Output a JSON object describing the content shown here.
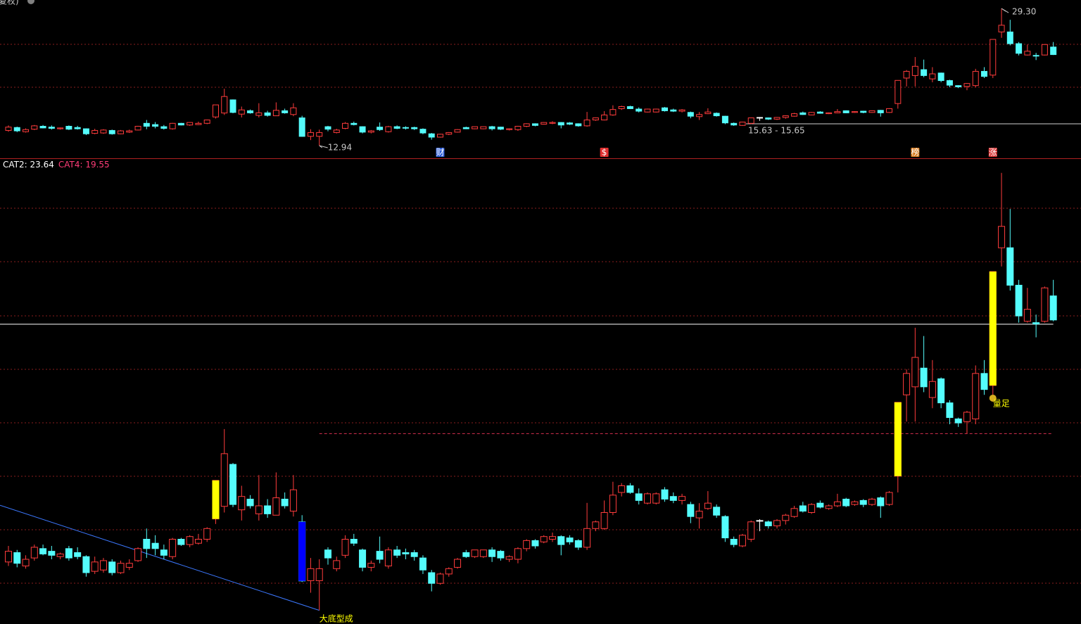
{
  "chart_data": {
    "type": "candlestick",
    "header": "复权)",
    "open": [
      14.75,
      15.1,
      14.6,
      14.9,
      15.25,
      15.15,
      14.95,
      15.25,
      15.1,
      14.95,
      14.4,
      14.45,
      14.75,
      14.35,
      14.55,
      14.8,
      15.6,
      15.45,
      15.2,
      14.95,
      15.6,
      15.4,
      15.45,
      15.6,
      16.36,
      16.83,
      18.4,
      16.7,
      17.1,
      16.55,
      16.85,
      16.5,
      17.1,
      16.65,
      16.25,
      14.05,
      14.05,
      15.2,
      14.5,
      15.0,
      15.6,
      15.2,
      14.55,
      15.15,
      14.6,
      15.2,
      15.1,
      15.1,
      14.9,
      14.35,
      13.95,
      14.3,
      14.55,
      15.1,
      14.95,
      14.95,
      15.2,
      15.15,
      14.85,
      14.85,
      15.25,
      15.55,
      15.5,
      15.6,
      15.7,
      15.65,
      15.55,
      15.3,
      16.0,
      16.0,
      16.6,
      17.35,
      17.6,
      17.3,
      16.95,
      16.95,
      17.45,
      17.2,
      17.05,
      16.9,
      16.4,
      16.75,
      16.8,
      16.45,
      15.6,
      15.35,
      15.6,
      16.3,
      16.25,
      16.1,
      16.3,
      16.45,
      16.85,
      16.6,
      16.95,
      16.75,
      16.85,
      17.1,
      16.9,
      17.05,
      16.9,
      17.15,
      16.9,
      17.96,
      21.0,
      21.3,
      22.0,
      20.9,
      21.6,
      20.7,
      20.1,
      20.0,
      20.1,
      21.8,
      21.35,
      26.5,
      26.5,
      25.1,
      23.75,
      23.7,
      23.75,
      24.7
    ],
    "high": [
      15.35,
      15.2,
      15.0,
      15.4,
      15.4,
      15.35,
      15.1,
      15.35,
      15.3,
      15.0,
      14.95,
      14.9,
      14.85,
      14.8,
      14.85,
      15.3,
      16.0,
      15.75,
      15.4,
      15.65,
      15.65,
      15.75,
      15.8,
      16.05,
      17.8,
      19.72,
      18.45,
      17.6,
      17.25,
      18.0,
      17.1,
      18.1,
      17.35,
      18.0,
      16.5,
      14.9,
      14.85,
      15.3,
      14.95,
      15.75,
      15.8,
      15.25,
      14.8,
      15.7,
      15.3,
      15.35,
      15.25,
      15.2,
      15.0,
      14.45,
      14.35,
      14.55,
      14.9,
      15.2,
      15.2,
      15.2,
      15.3,
      15.2,
      15.0,
      15.3,
      15.6,
      15.6,
      15.75,
      15.85,
      15.75,
      15.75,
      15.6,
      16.96,
      16.3,
      17.05,
      17.75,
      17.7,
      17.7,
      17.5,
      17.35,
      17.35,
      17.55,
      17.35,
      17.3,
      17.0,
      16.95,
      17.4,
      16.9,
      16.5,
      15.7,
      15.8,
      16.3,
      16.35,
      16.3,
      16.35,
      16.55,
      16.85,
      17.0,
      16.95,
      17.05,
      16.9,
      17.3,
      17.15,
      17.05,
      17.1,
      17.15,
      17.2,
      17.4,
      20.72,
      21.95,
      23.51,
      23.2,
      22.3,
      21.65,
      20.8,
      20.15,
      20.4,
      22.1,
      22.3,
      25.61,
      29.3,
      27.95,
      25.3,
      25.0,
      24.0,
      25.05,
      25.3
    ],
    "low": [
      14.6,
      14.55,
      14.5,
      14.8,
      15.0,
      14.85,
      14.85,
      14.8,
      14.85,
      14.2,
      14.3,
      14.35,
      14.25,
      14.3,
      14.45,
      14.75,
      14.9,
      15.0,
      14.85,
      14.85,
      15.35,
      15.3,
      15.4,
      15.5,
      16.17,
      16.6,
      16.8,
      16.3,
      16.75,
      16.3,
      16.4,
      16.5,
      16.75,
      16.45,
      14.0,
      13.6,
      12.94,
      14.65,
      14.4,
      14.9,
      15.35,
      14.4,
      14.4,
      14.7,
      14.5,
      14.9,
      14.85,
      14.8,
      14.3,
      13.65,
      13.9,
      14.2,
      14.5,
      14.9,
      14.9,
      14.9,
      14.75,
      14.8,
      14.75,
      14.7,
      15.15,
      15.25,
      15.45,
      15.5,
      15.0,
      15.4,
      15.2,
      15.2,
      15.9,
      15.95,
      16.5,
      17.2,
      17.3,
      16.9,
      16.9,
      16.9,
      17.0,
      16.95,
      16.9,
      16.2,
      16.0,
      16.7,
      16.4,
      15.5,
      15.3,
      15.3,
      15.5,
      15.9,
      16.0,
      16.0,
      16.15,
      16.4,
      16.6,
      16.55,
      16.75,
      16.7,
      16.8,
      16.8,
      16.85,
      16.8,
      16.85,
      16.4,
      16.85,
      17.35,
      20.0,
      20.0,
      21.1,
      20.5,
      20.5,
      19.9,
      19.8,
      19.55,
      19.9,
      21.0,
      21.0,
      25.8,
      24.9,
      23.7,
      23.7,
      23.15,
      23.7,
      23.75
    ],
    "close": [
      15.15,
      14.7,
      14.85,
      15.3,
      15.05,
      15.0,
      15.05,
      14.9,
      14.95,
      14.35,
      14.75,
      14.8,
      14.35,
      14.7,
      14.7,
      15.25,
      15.25,
      15.25,
      15.0,
      15.6,
      15.4,
      15.7,
      15.6,
      16.0,
      17.8,
      18.8,
      16.9,
      17.2,
      16.85,
      16.85,
      16.55,
      17.15,
      16.85,
      17.45,
      14.04,
      14.5,
      14.5,
      14.9,
      14.8,
      15.6,
      15.45,
      14.55,
      14.7,
      14.85,
      15.2,
      15.0,
      15.05,
      14.95,
      14.45,
      13.95,
      14.3,
      14.5,
      14.85,
      14.95,
      15.2,
      15.2,
      14.95,
      14.9,
      14.95,
      15.25,
      15.55,
      15.35,
      15.7,
      15.7,
      15.4,
      15.5,
      15.3,
      16.0,
      16.25,
      16.6,
      17.25,
      17.6,
      17.35,
      17.05,
      17.3,
      17.3,
      17.1,
      17.05,
      17.2,
      16.45,
      16.65,
      16.95,
      16.5,
      15.65,
      15.4,
      15.75,
      16.25,
      16.3,
      16.1,
      16.3,
      16.5,
      16.75,
      16.65,
      16.9,
      16.8,
      16.85,
      17.0,
      16.85,
      17.0,
      16.9,
      17.1,
      16.85,
      17.35,
      20.72,
      21.8,
      22.4,
      21.3,
      21.5,
      20.7,
      20.15,
      19.95,
      20.35,
      21.8,
      21.2,
      25.61,
      27.3,
      25.1,
      23.95,
      24.2,
      23.65,
      25.0,
      23.8
    ],
    "up_color": "#ff3c3c",
    "down_color": "#54fcfc",
    "flat_color": "#ffffff",
    "panels": [
      {
        "ylim": [
          11.43,
          30.31
        ]
      },
      {
        "ylim": [
          12.43,
          29.82
        ]
      }
    ],
    "high_label": {
      "text": "29.30",
      "index": 115
    },
    "low_label": {
      "text": "12.94",
      "index": 36
    },
    "range_label": "15.63 - 15.65",
    "events": [
      {
        "index": 50,
        "label": "财",
        "color": "#2c5cd8"
      },
      {
        "index": 69,
        "label": "$",
        "color": "#e03030"
      },
      {
        "index": 105,
        "label": "榜",
        "color": "#d87818"
      },
      {
        "index": 114,
        "label": "涨",
        "color": "#d83030"
      }
    ],
    "indicators": [
      {
        "name": "CAT2",
        "value": 23.64,
        "color": "#ffffff",
        "start_index": 0
      },
      {
        "name": "CAT4",
        "value": 19.55,
        "color": "#ff3c78",
        "start_index": 36
      }
    ],
    "signal_bars": [
      {
        "index": 24,
        "low": 16.36,
        "high": 17.8,
        "color": "#ffff00"
      },
      {
        "index": 34,
        "low": 14.04,
        "high": 16.25,
        "color": "#0000ff"
      },
      {
        "index": 103,
        "low": 17.96,
        "high": 20.72,
        "color": "#ffff00"
      },
      {
        "index": 114,
        "low": 21.35,
        "high": 25.61,
        "color": "#ffff00"
      }
    ],
    "signals": [
      {
        "index": 36,
        "text": "大底型成",
        "color": "#ffff00"
      },
      {
        "index": 114,
        "text": "量足",
        "color": "#ffff00"
      }
    ],
    "trendline": {
      "color": "#3c78ff",
      "start": [
        0,
        16.87
      ],
      "end": [
        36,
        12.94
      ]
    }
  }
}
